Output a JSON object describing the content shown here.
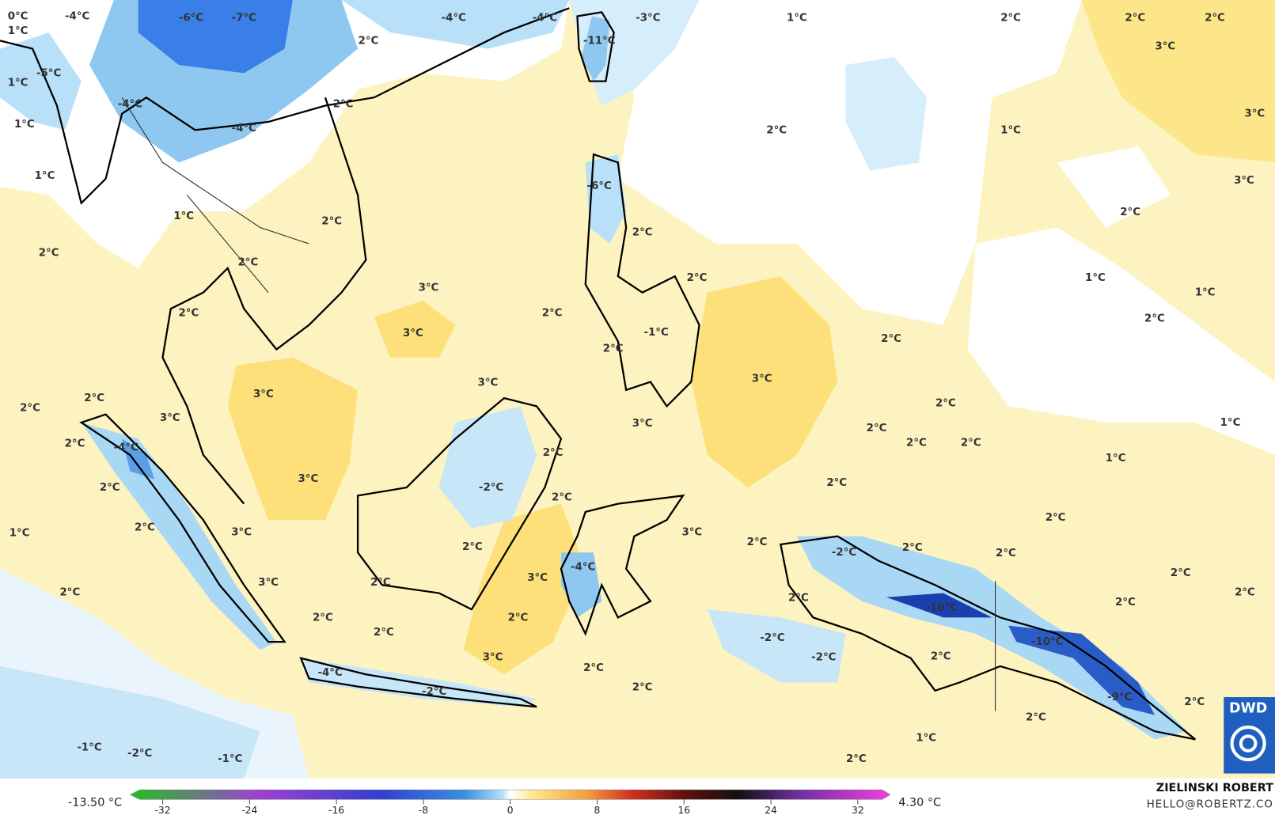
{
  "map": {
    "labels": [
      "0°C",
      "1°C",
      "-4°C",
      "-6°C",
      "-7°C",
      "-4°C",
      "-4°C",
      "-3°C",
      "1°C",
      "2°C",
      "2°C",
      "2°C",
      "3°C",
      "2°C",
      "-11°C",
      "1°C",
      "-5°C",
      "-4°C",
      "2°C",
      "-4°C",
      "1°C",
      "2°C",
      "1°C",
      "3°C",
      "1°C",
      "3°C",
      "-6°C",
      "1°C",
      "2°C",
      "2°C",
      "2°C",
      "2°C",
      "2°C",
      "2°C",
      "1°C",
      "3°C",
      "1°C",
      "2°C",
      "2°C",
      "2°C",
      "3°C",
      "-1°C",
      "2°C",
      "2°C",
      "3°C",
      "3°C",
      "3°C",
      "2°C",
      "2°C",
      "2°C",
      "3°C",
      "3°C",
      "1°C",
      "2°C",
      "2°C",
      "-4°C",
      "2°C",
      "2°C",
      "2°C",
      "1°C",
      "3°C",
      "2°C",
      "-2°C",
      "2°C",
      "2°C",
      "2°C",
      "2°C",
      "3°C",
      "1°C",
      "3°C",
      "2°C",
      "2°C",
      "-2°C",
      "2°C",
      "2°C",
      "-4°C",
      "2°C",
      "3°C",
      "3°C",
      "2°C",
      "2°C",
      "2°C",
      "-10°C",
      "2°C",
      "2°C",
      "2°C",
      "2°C",
      "2°C",
      "-2°C",
      "-10°C",
      "-2°C",
      "2°C",
      "3°C",
      "2°C",
      "-4°C",
      "2°C",
      "-2°C",
      "-9°C",
      "2°C",
      "2°C",
      "1°C",
      "-1°C",
      "-2°C",
      "-1°C",
      "2°C"
    ]
  },
  "colorbar": {
    "min_label": "-13.50 °C",
    "max_label": "4.30 °C",
    "lim": [
      -35,
      35
    ],
    "ticks": [
      -32,
      -24,
      -16,
      -8,
      0,
      8,
      16,
      24,
      32
    ]
  },
  "credit": {
    "name": "ZIELINSKI ROBERT",
    "email": "HELLO@ROBERTZ.CO"
  },
  "logo": {
    "text": "DWD"
  }
}
